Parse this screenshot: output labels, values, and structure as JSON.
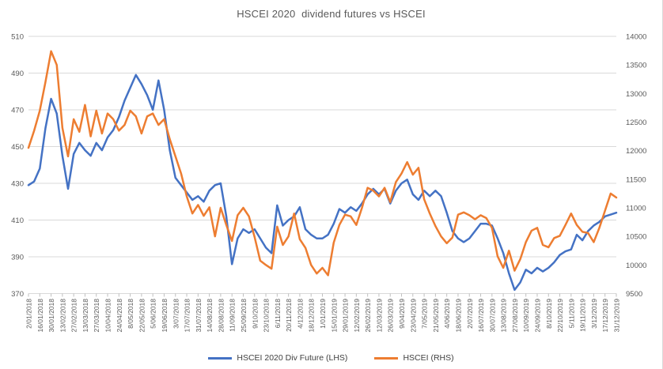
{
  "title": "HSCEI 2020  dividend futures vs HSCEI",
  "legend": [
    {
      "label": "HSCEI 2020 Div Future (LHS)",
      "color": "#4472C4"
    },
    {
      "label": "HSCEI (RHS)",
      "color": "#ED7D31"
    }
  ],
  "colors": {
    "gridline": "#d9d9d9",
    "axis_line": "#bfbfbf",
    "axis_text": "#595959",
    "title_text": "#595959",
    "legend_text": "#404040",
    "series_blue": "#4472C4",
    "series_orange": "#ED7D31"
  },
  "chart_data": {
    "type": "line",
    "title": "HSCEI 2020  dividend futures vs HSCEI",
    "xlabel": "",
    "ylabel_left": "",
    "ylabel_right": "",
    "grid": true,
    "legend_position": "bottom",
    "left_axis": {
      "min": 370,
      "max": 510,
      "step": 20,
      "ticks": [
        370,
        390,
        410,
        430,
        450,
        470,
        490,
        510
      ]
    },
    "right_axis": {
      "min": 9500,
      "max": 14000,
      "step": 500,
      "ticks": [
        9500,
        10000,
        10500,
        11000,
        11500,
        12000,
        12500,
        13000,
        13500,
        14000
      ]
    },
    "x_tick_labels": [
      "2/01/2018",
      "16/01/2018",
      "30/01/2018",
      "13/02/2018",
      "27/02/2018",
      "13/03/2018",
      "27/03/2018",
      "10/04/2018",
      "24/04/2018",
      "8/05/2018",
      "22/05/2018",
      "5/06/2018",
      "19/06/2018",
      "3/07/2018",
      "17/07/2018",
      "31/07/2018",
      "14/08/2018",
      "28/08/2018",
      "11/09/2018",
      "25/09/2018",
      "9/10/2018",
      "23/10/2018",
      "6/11/2018",
      "20/11/2018",
      "4/12/2018",
      "18/12/2018",
      "1/01/2019",
      "15/01/2019",
      "29/01/2019",
      "12/02/2019",
      "26/02/2019",
      "12/03/2019",
      "26/03/2019",
      "9/04/2019",
      "23/04/2019",
      "7/05/2019",
      "21/05/2019",
      "4/06/2019",
      "18/06/2019",
      "2/07/2019",
      "16/07/2019",
      "30/07/2019",
      "13/08/2019",
      "27/08/2019",
      "10/09/2019",
      "24/09/2019",
      "8/10/2019",
      "22/10/2019",
      "5/11/2019",
      "19/11/2019",
      "3/12/2019",
      "17/12/2019",
      "31/12/2019"
    ],
    "points_per_tick": 2,
    "series": [
      {
        "name": "HSCEI 2020 Div Future (LHS)",
        "axis": "left",
        "color": "#4472C4",
        "values": [
          429,
          431,
          438,
          460,
          476,
          468,
          445,
          427,
          446,
          452,
          448,
          445,
          452,
          448,
          455,
          459,
          466,
          475,
          482,
          489,
          484,
          478,
          470,
          486,
          470,
          448,
          433,
          429,
          425,
          421,
          423,
          420,
          426,
          429,
          430,
          412,
          386,
          400,
          405,
          403,
          405,
          400,
          395,
          392,
          418,
          407,
          410,
          412,
          417,
          405,
          402,
          400,
          400,
          402,
          408,
          416,
          414,
          417,
          415,
          419,
          424,
          427,
          424,
          427,
          419,
          426,
          430,
          432,
          424,
          421,
          426,
          423,
          426,
          423,
          414,
          404,
          400,
          398,
          400,
          404,
          408,
          408,
          407,
          400,
          392,
          381,
          372,
          376,
          383,
          381,
          384,
          382,
          384,
          387,
          391,
          393,
          394,
          402,
          399,
          404,
          407,
          409,
          412,
          413,
          414
        ]
      },
      {
        "name": "HSCEI (RHS)",
        "axis": "right",
        "color": "#ED7D31",
        "values": [
          12050,
          12350,
          12700,
          13200,
          13740,
          13500,
          12400,
          11900,
          12550,
          12330,
          12800,
          12250,
          12700,
          12300,
          12650,
          12550,
          12350,
          12450,
          12700,
          12600,
          12300,
          12600,
          12650,
          12450,
          12550,
          12200,
          11900,
          11600,
          11200,
          10900,
          11050,
          10860,
          11010,
          10500,
          11000,
          10700,
          10420,
          10870,
          11000,
          10850,
          10490,
          10075,
          10000,
          9935,
          10670,
          10350,
          10500,
          10900,
          10450,
          10300,
          10000,
          9850,
          9950,
          9820,
          10390,
          10700,
          10880,
          10850,
          10700,
          11000,
          11350,
          11300,
          11200,
          11350,
          11100,
          11450,
          11600,
          11800,
          11580,
          11700,
          11150,
          10900,
          10680,
          10500,
          10380,
          10480,
          10880,
          10920,
          10870,
          10800,
          10870,
          10820,
          10650,
          10150,
          9950,
          10250,
          9900,
          10100,
          10400,
          10600,
          10650,
          10350,
          10310,
          10470,
          10510,
          10700,
          10900,
          10700,
          10580,
          10560,
          10400,
          10650,
          10950,
          11250,
          11180
        ]
      }
    ]
  }
}
